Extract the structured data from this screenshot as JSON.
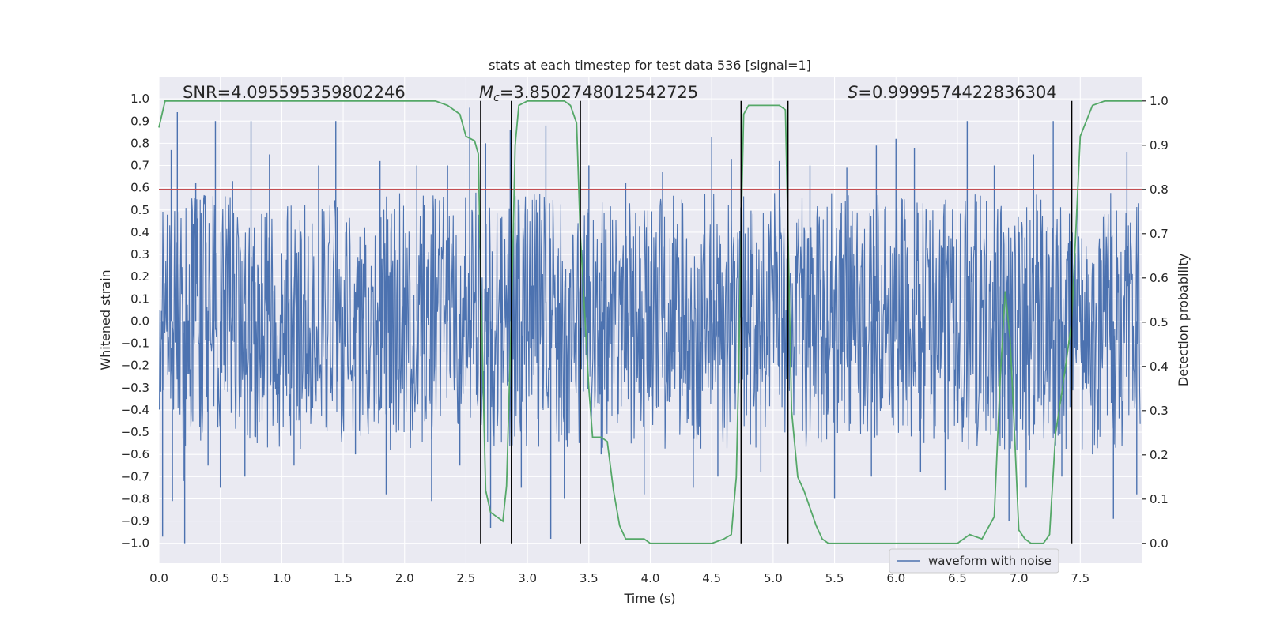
{
  "chart_data": {
    "type": "line",
    "title": "stats at each timestep for test data 536 [signal=1]",
    "xlabel": "Time (s)",
    "ylabel": "Whitened strain",
    "y2label": "Detection probability",
    "xlim": [
      0,
      8.0
    ],
    "ylim": [
      -1.09,
      1.1
    ],
    "y2lim": [
      -0.045,
      1.055
    ],
    "x_ticks": [
      0.0,
      0.5,
      1.0,
      1.5,
      2.0,
      2.5,
      3.0,
      3.5,
      4.0,
      4.5,
      5.0,
      5.5,
      6.0,
      6.5,
      7.0,
      7.5
    ],
    "x_tick_labels": [
      "0.0",
      "0.5",
      "1.0",
      "1.5",
      "2.0",
      "2.5",
      "3.0",
      "3.5",
      "4.0",
      "4.5",
      "5.0",
      "5.5",
      "6.0",
      "6.5",
      "7.0",
      "7.5"
    ],
    "y_ticks": [
      1.0,
      0.9,
      0.8,
      0.7,
      0.6,
      0.5,
      0.4,
      0.3,
      0.2,
      0.1,
      0.0,
      -0.1,
      -0.2,
      -0.3,
      -0.4,
      -0.5,
      -0.6,
      -0.7,
      -0.8,
      -0.9,
      -1.0
    ],
    "y_tick_labels": [
      "1.0",
      "0.9",
      "0.8",
      "0.7",
      "0.6",
      "0.5",
      "0.4",
      "0.3",
      "0.2",
      "0.1",
      "0.0",
      "−0.1",
      "−0.2",
      "−0.3",
      "−0.4",
      "−0.5",
      "−0.6",
      "−0.7",
      "−0.8",
      "−0.9",
      "−1.0"
    ],
    "y2_ticks": [
      1.0,
      0.9,
      0.8,
      0.7,
      0.6,
      0.5,
      0.4,
      0.3,
      0.2,
      0.1,
      0.0
    ],
    "y2_tick_labels": [
      "1.0",
      "0.9",
      "0.8",
      "0.7",
      "0.6",
      "0.5",
      "0.4",
      "0.3",
      "0.2",
      "0.1",
      "0.0"
    ],
    "grid": true,
    "annotations": {
      "snr": "SNR=4.095595359802246",
      "mc_symbol": "M",
      "mc_sub": "c",
      "mc_value": "=3.8502748012542725",
      "s_symbol": "S",
      "s_value": "=0.9999574422836304"
    },
    "threshold": {
      "value": 0.8,
      "axis": "y2",
      "color": "#c44e52"
    },
    "vertical_lines": [
      2.62,
      2.87,
      3.43,
      4.74,
      5.12,
      7.43
    ],
    "legend": {
      "entries": [
        "waveform with noise"
      ],
      "loc": "lower right"
    },
    "series": [
      {
        "name": "waveform with noise",
        "axis": "y",
        "color": "#4c72b0",
        "style": "dense noise, sampling 0.01 s",
        "core_envelope": 0.4,
        "peaks": [
          {
            "x": 0.03,
            "y": -0.97
          },
          {
            "x": 0.1,
            "y": 0.77
          },
          {
            "x": 0.11,
            "y": -0.81
          },
          {
            "x": 0.15,
            "y": 0.94
          },
          {
            "x": 0.2,
            "y": -0.72
          },
          {
            "x": 0.21,
            "y": -1.0
          },
          {
            "x": 0.3,
            "y": 0.62
          },
          {
            "x": 0.4,
            "y": -0.65
          },
          {
            "x": 0.46,
            "y": 0.9
          },
          {
            "x": 0.5,
            "y": -0.75
          },
          {
            "x": 0.6,
            "y": 0.63
          },
          {
            "x": 0.7,
            "y": -0.7
          },
          {
            "x": 0.75,
            "y": 0.9
          },
          {
            "x": 0.9,
            "y": 0.75
          },
          {
            "x": 1.1,
            "y": -0.65
          },
          {
            "x": 1.3,
            "y": 0.7
          },
          {
            "x": 1.44,
            "y": 0.9
          },
          {
            "x": 1.6,
            "y": -0.6
          },
          {
            "x": 1.8,
            "y": 0.72
          },
          {
            "x": 1.85,
            "y": -0.78
          },
          {
            "x": 2.1,
            "y": 0.7
          },
          {
            "x": 2.22,
            "y": -0.81
          },
          {
            "x": 2.35,
            "y": 0.7
          },
          {
            "x": 2.45,
            "y": -0.65
          },
          {
            "x": 2.53,
            "y": 0.96
          },
          {
            "x": 2.66,
            "y": 0.8
          },
          {
            "x": 2.7,
            "y": -0.93
          },
          {
            "x": 2.86,
            "y": 0.86
          },
          {
            "x": 2.95,
            "y": -0.75
          },
          {
            "x": 3.15,
            "y": 0.88
          },
          {
            "x": 3.19,
            "y": -0.98
          },
          {
            "x": 3.3,
            "y": -0.8
          },
          {
            "x": 3.5,
            "y": 0.7
          },
          {
            "x": 3.6,
            "y": -0.6
          },
          {
            "x": 3.8,
            "y": 0.62
          },
          {
            "x": 3.95,
            "y": -0.78
          },
          {
            "x": 4.1,
            "y": 0.67
          },
          {
            "x": 4.35,
            "y": -0.75
          },
          {
            "x": 4.5,
            "y": 0.83
          },
          {
            "x": 4.55,
            "y": -0.7
          },
          {
            "x": 4.66,
            "y": 0.73
          },
          {
            "x": 4.9,
            "y": -0.68
          },
          {
            "x": 5.05,
            "y": 0.72
          },
          {
            "x": 5.3,
            "y": 0.7
          },
          {
            "x": 5.5,
            "y": -0.8
          },
          {
            "x": 5.6,
            "y": 0.69
          },
          {
            "x": 5.8,
            "y": -0.7
          },
          {
            "x": 5.84,
            "y": 0.79
          },
          {
            "x": 6.0,
            "y": 0.82
          },
          {
            "x": 6.15,
            "y": 0.78
          },
          {
            "x": 6.2,
            "y": -0.68
          },
          {
            "x": 6.4,
            "y": -0.76
          },
          {
            "x": 6.58,
            "y": 0.9
          },
          {
            "x": 6.8,
            "y": 0.7
          },
          {
            "x": 6.92,
            "y": -0.9
          },
          {
            "x": 7.06,
            "y": -0.75
          },
          {
            "x": 7.12,
            "y": 0.75
          },
          {
            "x": 7.28,
            "y": 0.9
          },
          {
            "x": 7.35,
            "y": -0.7
          },
          {
            "x": 7.6,
            "y": -0.6
          },
          {
            "x": 7.77,
            "y": -0.89
          },
          {
            "x": 7.88,
            "y": 0.76
          },
          {
            "x": 7.96,
            "y": -0.78
          }
        ]
      },
      {
        "name": "detection probability",
        "axis": "y2",
        "color": "#55a868",
        "x": [
          0.0,
          0.05,
          0.1,
          0.5,
          1.0,
          1.5,
          2.0,
          2.25,
          2.35,
          2.45,
          2.5,
          2.57,
          2.6,
          2.62,
          2.64,
          2.66,
          2.7,
          2.75,
          2.8,
          2.83,
          2.87,
          2.9,
          2.93,
          3.0,
          3.1,
          3.3,
          3.35,
          3.4,
          3.43,
          3.47,
          3.5,
          3.53,
          3.56,
          3.6,
          3.65,
          3.7,
          3.75,
          3.8,
          3.85,
          3.9,
          3.95,
          4.0,
          4.1,
          4.3,
          4.5,
          4.6,
          4.66,
          4.7,
          4.72,
          4.74,
          4.76,
          4.8,
          4.9,
          5.0,
          5.05,
          5.1,
          5.12,
          5.15,
          5.2,
          5.25,
          5.3,
          5.35,
          5.4,
          5.45,
          5.5,
          5.6,
          5.7,
          5.8,
          5.9,
          6.0,
          6.1,
          6.2,
          6.3,
          6.4,
          6.5,
          6.6,
          6.7,
          6.8,
          6.85,
          6.89,
          6.93,
          6.96,
          7.0,
          7.05,
          7.1,
          7.2,
          7.25,
          7.3,
          7.35,
          7.43,
          7.5,
          7.6,
          7.7,
          8.0
        ],
        "y": [
          0.94,
          1.0,
          1.0,
          1.0,
          1.0,
          1.0,
          1.0,
          1.0,
          0.99,
          0.97,
          0.92,
          0.91,
          0.88,
          0.6,
          0.35,
          0.12,
          0.07,
          0.06,
          0.05,
          0.13,
          0.52,
          0.9,
          0.99,
          1.0,
          1.0,
          1.0,
          0.99,
          0.95,
          0.7,
          0.5,
          0.35,
          0.24,
          0.24,
          0.24,
          0.23,
          0.12,
          0.04,
          0.01,
          0.01,
          0.01,
          0.01,
          0.0,
          0.0,
          0.0,
          0.0,
          0.01,
          0.02,
          0.15,
          0.4,
          0.72,
          0.97,
          0.99,
          0.99,
          0.99,
          0.99,
          0.98,
          0.72,
          0.3,
          0.15,
          0.12,
          0.08,
          0.04,
          0.01,
          0.0,
          0.0,
          0.0,
          0.0,
          0.0,
          0.0,
          0.0,
          0.0,
          0.0,
          0.0,
          0.0,
          0.0,
          0.02,
          0.01,
          0.06,
          0.38,
          0.57,
          0.46,
          0.28,
          0.03,
          0.01,
          0.0,
          0.0,
          0.02,
          0.25,
          0.34,
          0.5,
          0.92,
          0.99,
          1.0,
          1.0
        ]
      }
    ]
  }
}
